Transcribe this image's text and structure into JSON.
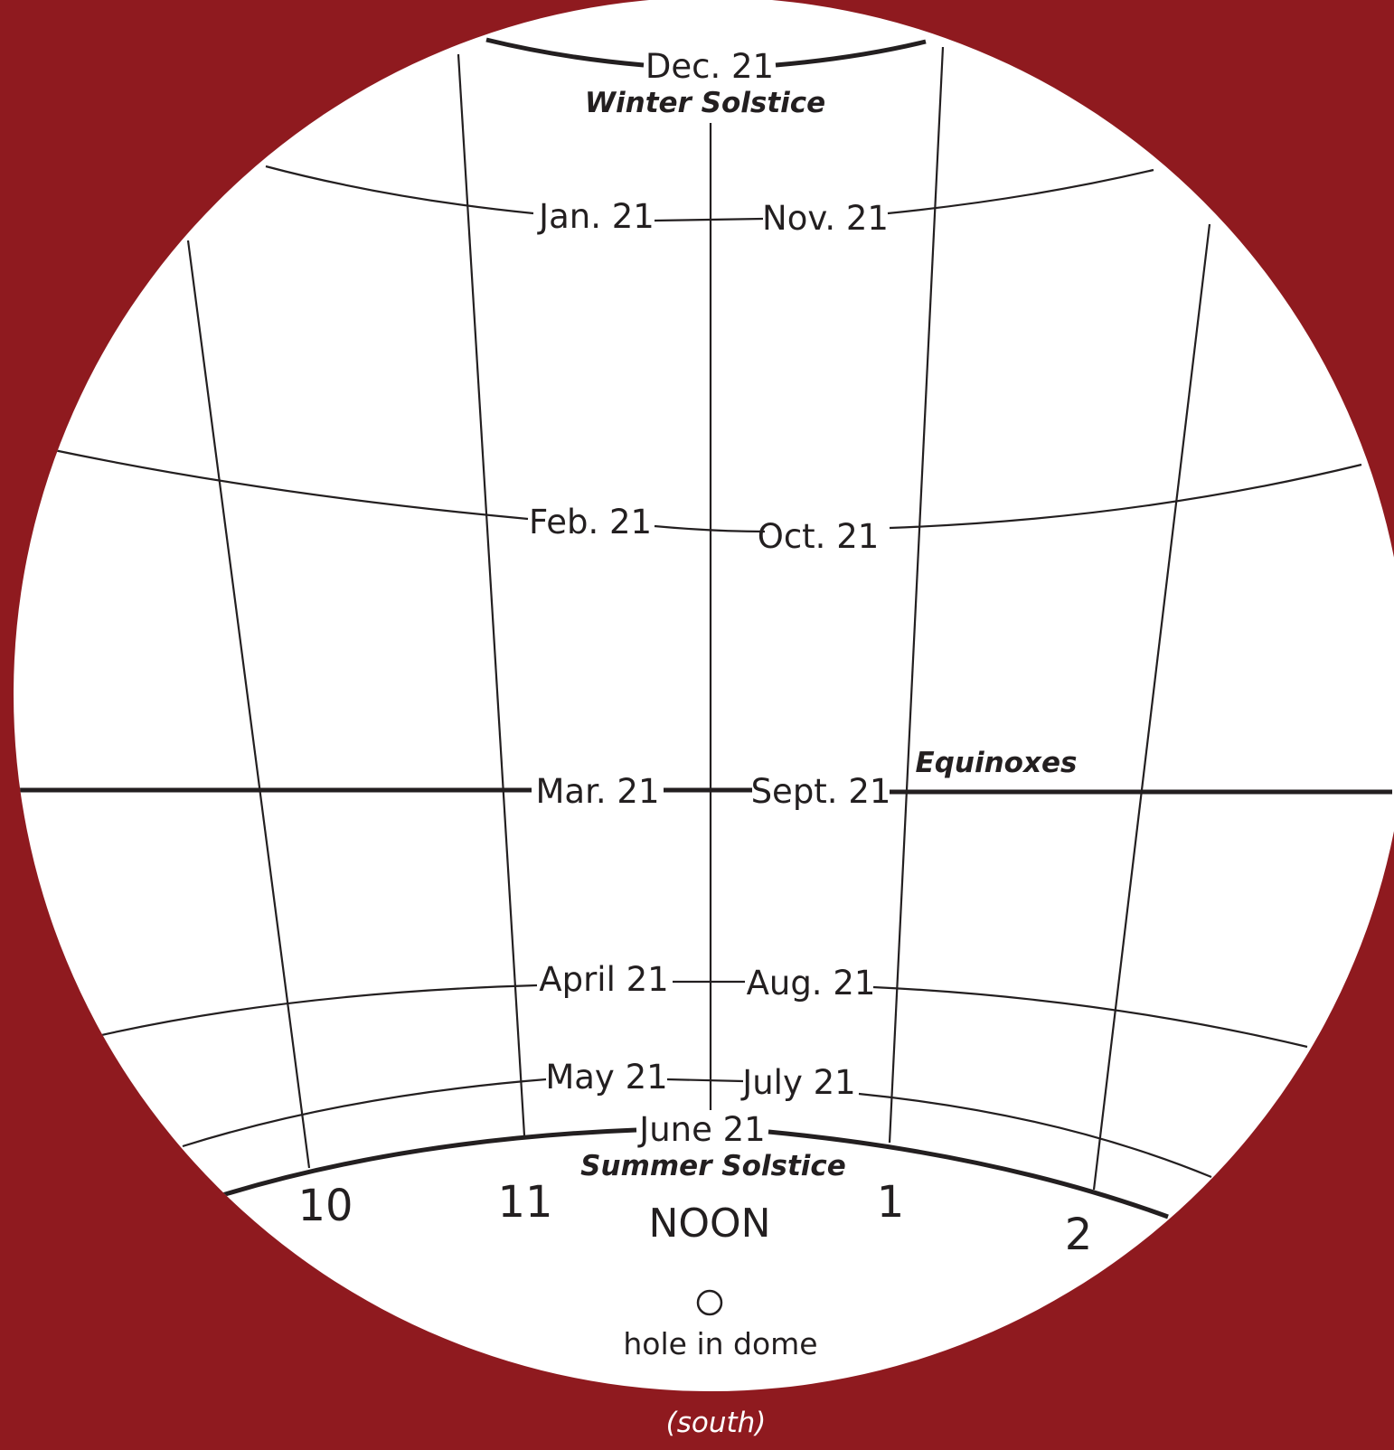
{
  "dates": {
    "dec": "Dec. 21",
    "winter": "Winter Solstice",
    "jan": "Jan. 21",
    "nov": "Nov. 21",
    "feb": "Feb. 21",
    "oct": "Oct. 21",
    "mar": "Mar. 21",
    "sept": "Sept. 21",
    "equinoxes": "Equinoxes",
    "apr": "April 21",
    "aug": "Aug. 21",
    "may": "May 21",
    "jul": "July 21",
    "jun": "June 21",
    "summer": "Summer Solstice"
  },
  "hours": {
    "h10": "10",
    "h11": "11",
    "noon": "NOON",
    "h1": "1",
    "h2": "2"
  },
  "hole_label": "hole in dome",
  "direction": "(south)",
  "colors": {
    "background": "#8f1a1f",
    "dial": "#ffffff",
    "ink": "#231f20"
  }
}
